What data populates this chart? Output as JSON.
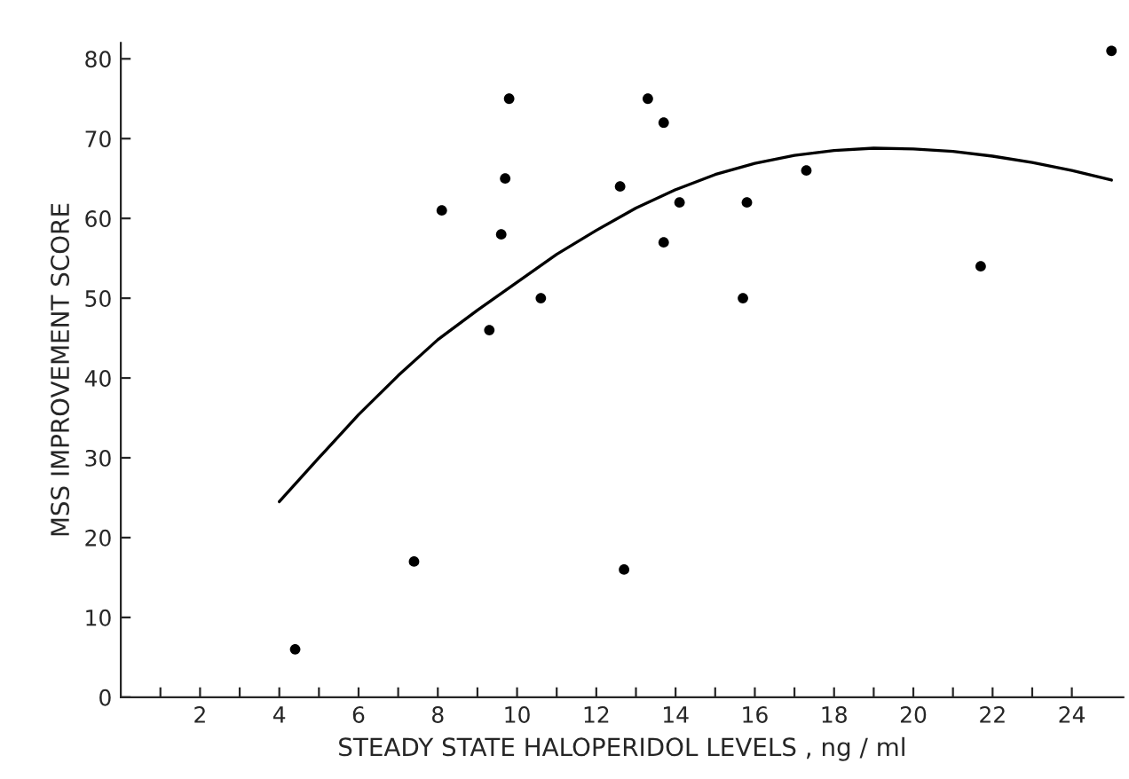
{
  "chart_data": {
    "type": "scatter",
    "xlabel": "STEADY STATE HALOPERIDOL LEVELS , ng / ml",
    "ylabel": "MSS IMPROVEMENT SCORE",
    "xlim": [
      0,
      25.3
    ],
    "ylim": [
      0,
      82
    ],
    "xticks": [
      {
        "value": 1,
        "label": null
      },
      2,
      {
        "value": 3,
        "label": null
      },
      4,
      {
        "value": 5,
        "label": null
      },
      6,
      {
        "value": 7,
        "label": null
      },
      8,
      {
        "value": 9,
        "label": null
      },
      10,
      {
        "value": 11,
        "label": null
      },
      12,
      {
        "value": 13,
        "label": null
      },
      14,
      {
        "value": 15,
        "label": null
      },
      16,
      {
        "value": 17,
        "label": null
      },
      18,
      {
        "value": 19,
        "label": null
      },
      20,
      {
        "value": 21,
        "label": null
      },
      22,
      {
        "value": 23,
        "label": null
      },
      24
    ],
    "yticks": [
      0,
      10,
      20,
      30,
      40,
      50,
      60,
      70,
      80
    ],
    "grid": false,
    "marker": "circle",
    "series": [
      {
        "color": "#000000",
        "x": [
          4.4,
          7.4,
          8.1,
          9.3,
          9.6,
          9.7,
          9.8,
          10.6,
          12.6,
          12.7,
          13.3,
          13.7,
          13.7,
          14.1,
          15.7,
          15.8,
          17.3,
          21.7,
          25.0
        ],
        "values": [
          6,
          17,
          61,
          46,
          58,
          65,
          75,
          50,
          64,
          16,
          75,
          72,
          57,
          62,
          50,
          62,
          66,
          54,
          81
        ]
      },
      {
        "type": "line",
        "color": "#000000",
        "line_style": "solid",
        "marker": "none",
        "x": [
          4,
          5,
          6,
          7,
          8,
          9,
          10,
          11,
          12,
          13,
          14,
          15,
          16,
          17,
          18,
          19,
          20,
          21,
          22,
          23,
          24,
          25
        ],
        "values": [
          24.5,
          30,
          35.4,
          40.3,
          44.8,
          48.5,
          52,
          55.5,
          58.5,
          61.3,
          63.6,
          65.5,
          66.9,
          67.9,
          68.5,
          68.8,
          68.7,
          68.4,
          67.8,
          67,
          66,
          64.8
        ]
      }
    ]
  }
}
